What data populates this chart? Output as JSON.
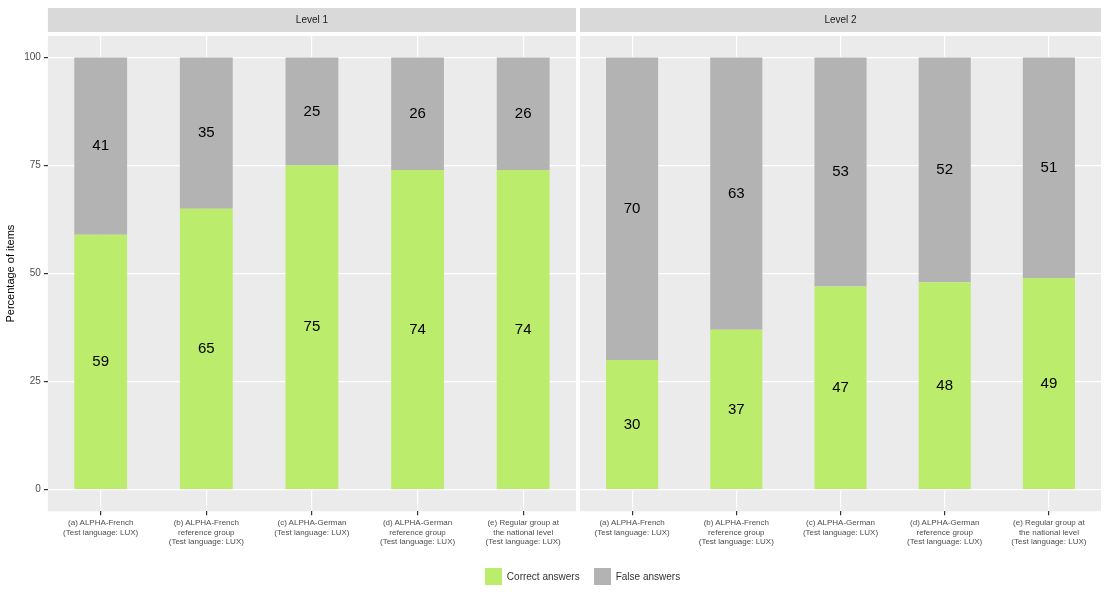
{
  "chart_data": [
    {
      "type": "bar",
      "title": "Level 1",
      "ylabel": "Percentage of items",
      "stacked": true,
      "categories": [
        "(a) ALPHA-French\n(Test language: LUX)",
        "(b) ALPHA-French\nreference group\n(Test language: LUX)",
        "(c) ALPHA-German\n(Test language: LUX)",
        "(d) ALPHA-German\nreference group\n(Test language: LUX)",
        "(e) Regular group at\nthe national level\n(Test language: LUX)"
      ],
      "series": [
        {
          "name": "Correct answers",
          "color": "#bbec6b",
          "values": [
            59,
            65,
            75,
            74,
            74
          ]
        },
        {
          "name": "False answers",
          "color": "#b3b3b3",
          "values": [
            41,
            35,
            25,
            26,
            26
          ]
        }
      ],
      "ylim": [
        -5,
        105
      ],
      "yticks": [
        0,
        25,
        50,
        75,
        100
      ],
      "grid": true,
      "data_labels": true,
      "legend": "bottom"
    },
    {
      "type": "bar",
      "title": "Level 2",
      "stacked": true,
      "categories": [
        "(a) ALPHA-French\n(Test language: LUX)",
        "(b) ALPHA-French\nreference group\n(Test language: LUX)",
        "(c) ALPHA-German\n(Test language: LUX)",
        "(d) ALPHA-German\nreference group\n(Test language: LUX)",
        "(e) Regular group at\nthe national level\n(Test language: LUX)"
      ],
      "series": [
        {
          "color": "#bbec6b",
          "values": [
            30,
            37,
            47,
            48,
            49
          ]
        },
        {
          "color": "#b3b3b3",
          "values": [
            70,
            63,
            53,
            52,
            51
          ]
        }
      ],
      "ylim": [
        -5,
        105
      ],
      "yticks": [
        0,
        25,
        50,
        75,
        100
      ],
      "grid": true,
      "data_labels": true,
      "tick_labels": "x"
    }
  ]
}
